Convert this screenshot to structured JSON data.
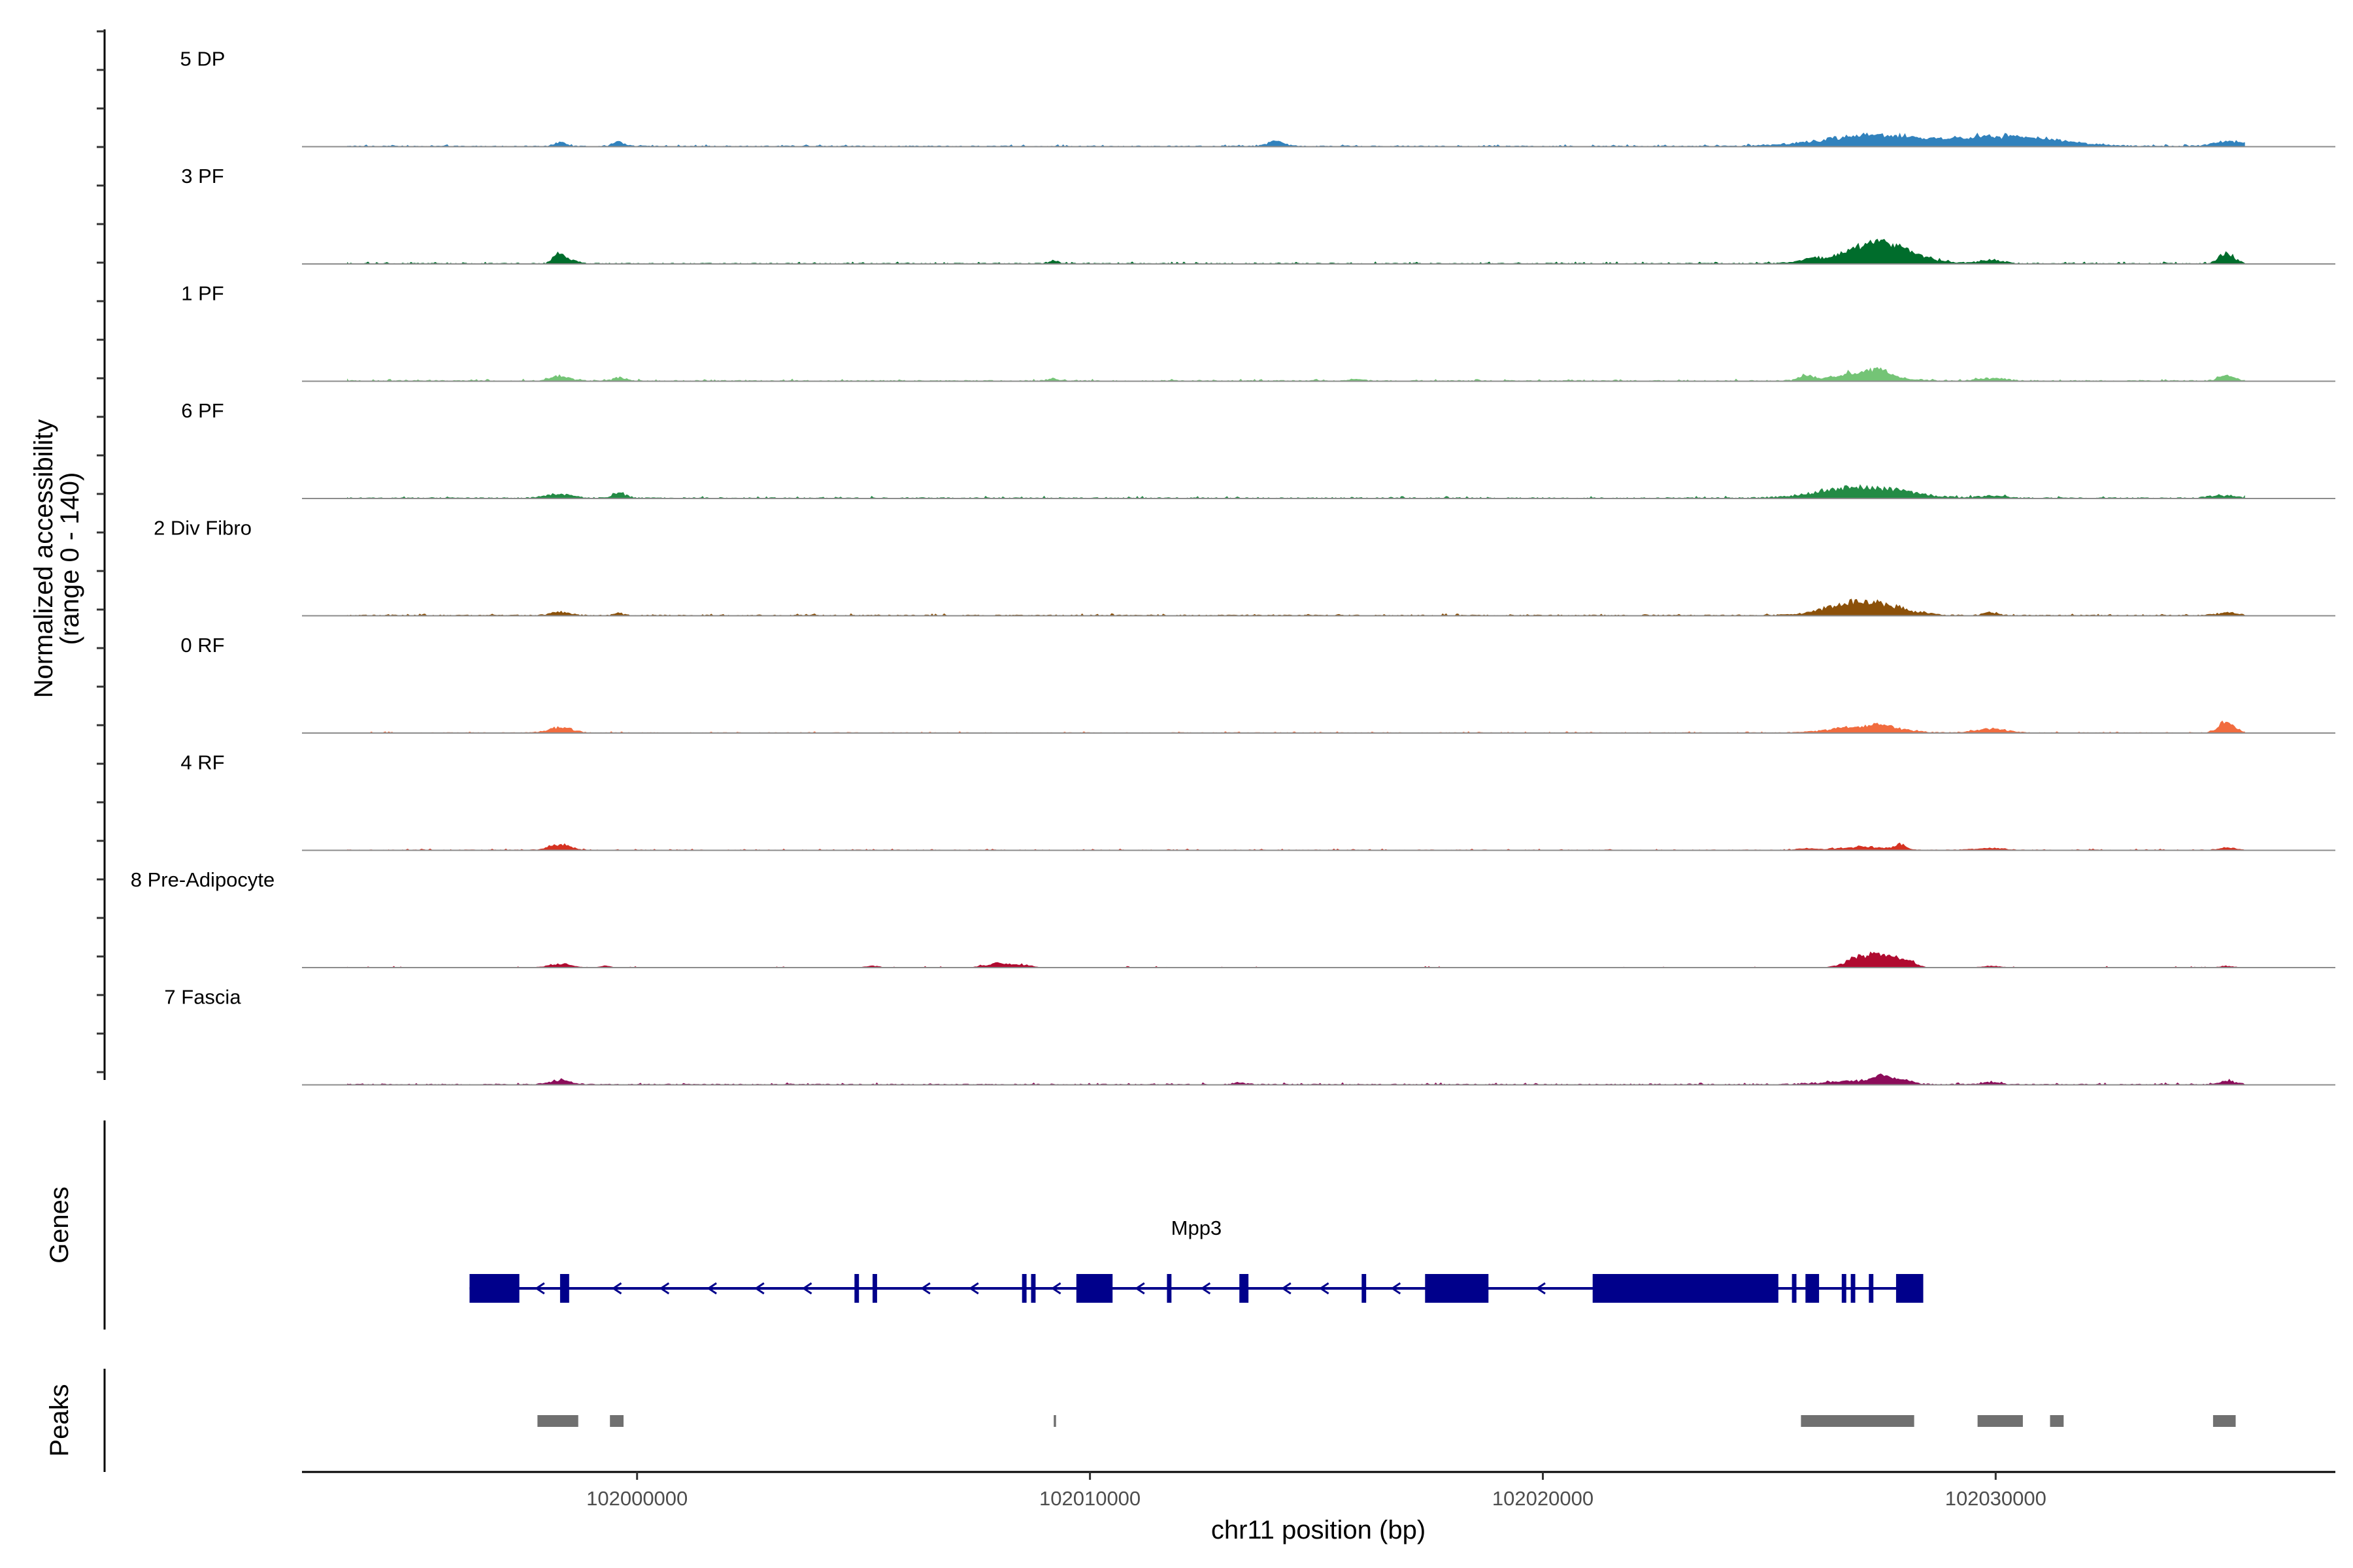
{
  "chart_data": {
    "type": "area",
    "title": "",
    "xlabel": "chr11 position (bp)",
    "ylabel_line1": "Normalized accessibility",
    "ylabel_line2": "(range 0 - 140)",
    "x_range": [
      101992600,
      102037500
    ],
    "y_range": [
      0,
      140
    ],
    "x_ticks": [
      102000000,
      102010000,
      102020000,
      102030000
    ],
    "x_tick_labels": [
      "102000000",
      "102010000",
      "102020000",
      "102030000"
    ],
    "track_labels": {
      "genes": "Genes",
      "peaks": "Peaks"
    },
    "tracks": [
      {
        "name": "5 DP",
        "color": "#3182bd",
        "baseline": 1.5,
        "peaks": [
          [
            101998300,
            130,
            7
          ],
          [
            101999600,
            120,
            9
          ],
          [
            102014100,
            180,
            10
          ],
          [
            102027000,
            1100,
            13
          ],
          [
            102027500,
            800,
            8
          ],
          [
            102030100,
            1200,
            13
          ],
          [
            102030300,
            1000,
            6
          ],
          [
            102035200,
            350,
            9
          ]
        ]
      },
      {
        "name": "3 PF",
        "color": "#006d2c",
        "baseline": 1.5,
        "peaks": [
          [
            101998300,
            130,
            19
          ],
          [
            101998600,
            100,
            6
          ],
          [
            102009200,
            100,
            5
          ],
          [
            102025900,
            140,
            6
          ],
          [
            102027200,
            900,
            14
          ],
          [
            102027500,
            600,
            26
          ],
          [
            102029900,
            250,
            7
          ],
          [
            102035100,
            170,
            20
          ]
        ]
      },
      {
        "name": "1 PF",
        "color": "#74c476",
        "baseline": 1.5,
        "peaks": [
          [
            101998300,
            220,
            9
          ],
          [
            101999600,
            120,
            7
          ],
          [
            102009200,
            130,
            4
          ],
          [
            102015900,
            150,
            3
          ],
          [
            102025800,
            140,
            9
          ],
          [
            102027100,
            600,
            16
          ],
          [
            102027400,
            200,
            9
          ],
          [
            102029900,
            300,
            5
          ],
          [
            102035100,
            170,
            10
          ]
        ]
      },
      {
        "name": "6 PF",
        "color": "#238b45",
        "baseline": 1.6,
        "peaks": [
          [
            101998300,
            300,
            7
          ],
          [
            101999600,
            150,
            10
          ],
          [
            102027100,
            900,
            21
          ],
          [
            102029900,
            300,
            4
          ],
          [
            102035000,
            280,
            5
          ]
        ]
      },
      {
        "name": "2 Div Fibro",
        "color": "#8c510a",
        "baseline": 1.5,
        "peaks": [
          [
            101998300,
            220,
            6
          ],
          [
            101999600,
            100,
            4
          ],
          [
            102027100,
            700,
            28
          ],
          [
            102029900,
            150,
            6
          ],
          [
            102035100,
            220,
            5
          ]
        ]
      },
      {
        "name": "0 RF",
        "color": "#f16c3f",
        "baseline": 1.0,
        "peaks": [
          [
            101998300,
            250,
            11
          ],
          [
            102027100,
            700,
            11
          ],
          [
            102027500,
            300,
            5
          ],
          [
            102029900,
            350,
            7
          ],
          [
            102035100,
            170,
            21
          ]
        ]
      },
      {
        "name": "4 RF",
        "color": "#d63221",
        "baseline": 1.0,
        "peaks": [
          [
            101998300,
            230,
            10
          ],
          [
            102025800,
            150,
            3
          ],
          [
            102027000,
            500,
            6
          ],
          [
            102027900,
            120,
            10
          ],
          [
            102029900,
            300,
            4
          ],
          [
            102035100,
            200,
            4
          ]
        ]
      },
      {
        "name": "8 Pre-Adipocyte",
        "color": "#b00b30",
        "baseline": 0,
        "peaks": [
          [
            101998300,
            250,
            7
          ],
          [
            101999300,
            120,
            3
          ],
          [
            102005200,
            150,
            3
          ],
          [
            102008000,
            300,
            8
          ],
          [
            102008600,
            150,
            4
          ],
          [
            102027000,
            300,
            19
          ],
          [
            102027500,
            250,
            19
          ],
          [
            102028000,
            200,
            16
          ],
          [
            102029900,
            200,
            3
          ],
          [
            102035100,
            150,
            3
          ]
        ]
      },
      {
        "name": "7 Fascia",
        "color": "#8c0c5a",
        "baseline": 1.5,
        "peaks": [
          [
            101998300,
            230,
            8
          ],
          [
            102013300,
            150,
            3
          ],
          [
            102027000,
            700,
            7
          ],
          [
            102027500,
            200,
            12
          ],
          [
            102028000,
            150,
            6
          ],
          [
            102029900,
            200,
            4
          ],
          [
            102035100,
            200,
            6
          ]
        ]
      }
    ],
    "gene": {
      "name": "Mpp3",
      "strand": "-",
      "start": 101996300,
      "end": 102028400,
      "exons": [
        [
          101996300,
          101997400
        ],
        [
          101998300,
          101998500
        ],
        [
          102004800,
          102004900
        ],
        [
          102005200,
          102005300
        ],
        [
          102008500,
          102008600
        ],
        [
          102008700,
          102008800
        ],
        [
          102009700,
          102010500
        ],
        [
          102011700,
          102011800
        ],
        [
          102013300,
          102013500
        ],
        [
          102016000,
          102016100
        ],
        [
          102017400,
          102018800
        ],
        [
          102021100,
          102025200
        ],
        [
          102025500,
          102025600
        ],
        [
          102025800,
          102026100
        ],
        [
          102026600,
          102026700
        ],
        [
          102026800,
          102026900
        ],
        [
          102027200,
          102027300
        ],
        [
          102027800,
          102028400
        ]
      ]
    },
    "peak_regions": [
      [
        101997800,
        101998700
      ],
      [
        101999400,
        101999700
      ],
      [
        102009200,
        102009250
      ],
      [
        102025700,
        102028200
      ],
      [
        102029600,
        102030600
      ],
      [
        102031200,
        102031500
      ],
      [
        102034800,
        102035300
      ]
    ]
  }
}
